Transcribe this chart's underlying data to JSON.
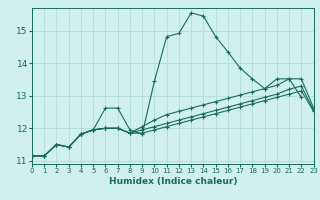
{
  "xlabel": "Humidex (Indice chaleur)",
  "bg_color": "#cff0ec",
  "grid_color": "#b0d8d2",
  "line_color": "#1a6b5a",
  "xlim": [
    0,
    23
  ],
  "ylim": [
    10.9,
    15.7
  ],
  "yticks": [
    11,
    12,
    13,
    14,
    15
  ],
  "xticks": [
    0,
    1,
    2,
    3,
    4,
    5,
    6,
    7,
    8,
    9,
    10,
    11,
    12,
    13,
    14,
    15,
    16,
    17,
    18,
    19,
    20,
    21,
    22,
    23
  ],
  "curves": [
    {
      "x": [
        0,
        1,
        2,
        3,
        4,
        5,
        6,
        7,
        8,
        9,
        10,
        11,
        12,
        13,
        14,
        15,
        16,
        17,
        18,
        19,
        20,
        21,
        22
      ],
      "y": [
        11.15,
        11.15,
        11.5,
        11.42,
        11.82,
        11.95,
        12.62,
        12.62,
        11.95,
        11.82,
        13.45,
        14.82,
        14.92,
        15.55,
        15.45,
        14.82,
        14.35,
        13.85,
        13.52,
        13.22,
        13.52,
        13.52,
        12.95
      ]
    },
    {
      "x": [
        0,
        1,
        2,
        3,
        4,
        5,
        6,
        7,
        8,
        9,
        10,
        11,
        12,
        13,
        14,
        15,
        16,
        17,
        18,
        19,
        20,
        21,
        22,
        23
      ],
      "y": [
        11.15,
        11.15,
        11.5,
        11.42,
        11.82,
        11.95,
        12.0,
        12.0,
        11.85,
        12.05,
        12.25,
        12.42,
        12.52,
        12.62,
        12.72,
        12.82,
        12.92,
        13.02,
        13.12,
        13.22,
        13.32,
        13.52,
        13.52,
        12.62
      ]
    },
    {
      "x": [
        0,
        1,
        2,
        3,
        4,
        5,
        6,
        7,
        8,
        9,
        10,
        11,
        12,
        13,
        14,
        15,
        16,
        17,
        18,
        19,
        20,
        21,
        22,
        23
      ],
      "y": [
        11.15,
        11.15,
        11.5,
        11.42,
        11.82,
        11.95,
        12.0,
        12.0,
        11.85,
        11.95,
        12.05,
        12.15,
        12.25,
        12.35,
        12.45,
        12.55,
        12.65,
        12.75,
        12.85,
        12.95,
        13.05,
        13.2,
        13.3,
        12.55
      ]
    },
    {
      "x": [
        0,
        1,
        2,
        3,
        4,
        5,
        6,
        7,
        8,
        9,
        10,
        11,
        12,
        13,
        14,
        15,
        16,
        17,
        18,
        19,
        20,
        21,
        22,
        23
      ],
      "y": [
        11.15,
        11.15,
        11.5,
        11.42,
        11.82,
        11.95,
        12.0,
        12.0,
        11.85,
        11.85,
        11.95,
        12.05,
        12.15,
        12.25,
        12.35,
        12.45,
        12.55,
        12.65,
        12.75,
        12.85,
        12.95,
        13.05,
        13.15,
        12.52
      ]
    }
  ]
}
